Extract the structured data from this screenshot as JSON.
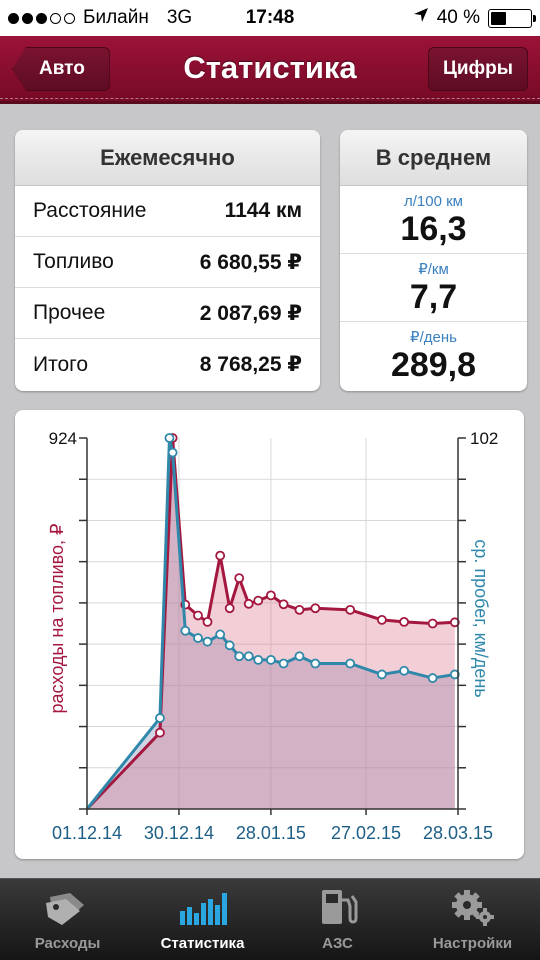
{
  "status_bar": {
    "carrier": "Билайн",
    "network": "3G",
    "time": "17:48",
    "battery": "40 %",
    "battery_level": 0.4,
    "signal_bars": 3
  },
  "nav": {
    "back_label": "Авто",
    "title": "Статистика",
    "right_label": "Цифры"
  },
  "monthly": {
    "title": "Ежемесячно",
    "rows": [
      {
        "label": "Расстояние",
        "value": "1144 км"
      },
      {
        "label": "Топливо",
        "value": "6 680,55 ₽"
      },
      {
        "label": "Прочее",
        "value": "2 087,69 ₽"
      },
      {
        "label": "Итого",
        "value": "8 768,25 ₽"
      }
    ]
  },
  "average": {
    "title": "В среднем",
    "items": [
      {
        "unit": "л/100 км",
        "value": "16,3"
      },
      {
        "unit": "₽/км",
        "value": "7,7"
      },
      {
        "unit": "₽/день",
        "value": "289,8"
      }
    ]
  },
  "chart_data": {
    "type": "line",
    "ylabel": "расходы на топливо, ₽",
    "y2label": "ср. пробег, км/день",
    "ylim": [
      0,
      924
    ],
    "y2lim": [
      0,
      102
    ],
    "x_ticks": [
      "01.12.14",
      "30.12.14",
      "28.01.15",
      "27.02.15",
      "28.03.15"
    ],
    "xlim_days": [
      0,
      117
    ],
    "y_tick_labels": [
      "924"
    ],
    "y2_tick_labels": [
      "102"
    ],
    "series": [
      {
        "name": "расходы на топливо, ₽",
        "color": "#a4173e",
        "fill": "rgba(214,106,130,0.32)",
        "axis": "left",
        "days": [
          0,
          23,
          27,
          31,
          35,
          38,
          42,
          45,
          48,
          51,
          54,
          58,
          62,
          67,
          72,
          83,
          93,
          100,
          109,
          116
        ],
        "values": [
          0,
          190,
          924,
          509,
          482,
          466,
          631,
          500,
          575,
          511,
          519,
          532,
          510,
          496,
          500,
          496,
          471,
          466,
          462,
          465
        ]
      },
      {
        "name": "ср. пробег, км/день",
        "color": "#2f88aa",
        "fill": "rgba(150,160,195,0.45)",
        "axis": "right",
        "days": [
          0,
          23,
          26,
          27,
          31,
          35,
          38,
          42,
          45,
          48,
          51,
          54,
          58,
          62,
          67,
          72,
          83,
          93,
          100,
          109,
          116
        ],
        "values": [
          0,
          25,
          102,
          98,
          49,
          47,
          46,
          48,
          45,
          42,
          42,
          41,
          41,
          40,
          42,
          40,
          40,
          37,
          38,
          36,
          37
        ]
      }
    ]
  },
  "tabs": [
    {
      "label": "Расходы",
      "icon": "tags-icon",
      "active": false
    },
    {
      "label": "Статистика",
      "icon": "bar-chart-icon",
      "active": true
    },
    {
      "label": "АЗС",
      "icon": "fuel-pump-icon",
      "active": false
    },
    {
      "label": "Настройки",
      "icon": "gears-icon",
      "active": false
    }
  ]
}
